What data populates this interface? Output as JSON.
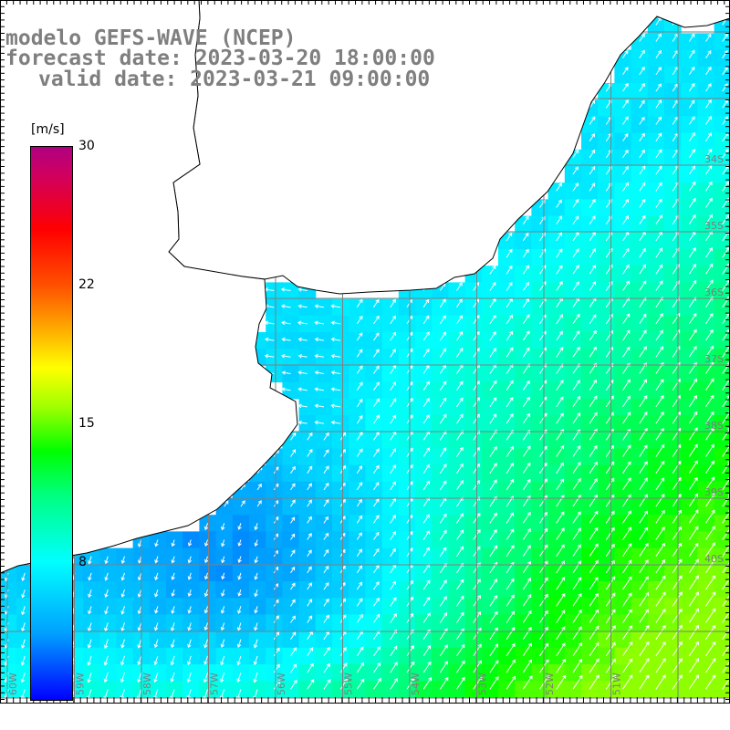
{
  "title": {
    "line1": "modelo GEFS-WAVE (NCEP)",
    "line2": "forecast date: 2023-03-20 18:00:00",
    "line3": "valid date: 2023-03-21 09:00:00"
  },
  "colorbar": {
    "unit": "[m/s]",
    "labels": [
      "30",
      "22",
      "15",
      "8"
    ],
    "min": 0,
    "max": 30
  },
  "map": {
    "lon_labels": [
      "60W",
      "59W",
      "58W",
      "57W",
      "56W",
      "55W",
      "54W",
      "53W",
      "52W",
      "51W"
    ],
    "lat_labels": [
      "34S",
      "35S",
      "36S",
      "37S",
      "38S",
      "39S",
      "40S"
    ],
    "colors": {
      "land": "#ffffff",
      "grid": "#7f7f7f",
      "coast": "#000000",
      "arrow": "#ffffff"
    },
    "field": {
      "description_free": true,
      "wind_speed_range_ms": [
        0,
        16
      ],
      "low_speed_center_lonlat": [
        -57.3,
        -38.7
      ],
      "high_speed_corner_lonlat": [
        -51.0,
        -40.8
      ],
      "coastal_band_speed_ms": 6,
      "dominant_direction": "northeast"
    }
  }
}
